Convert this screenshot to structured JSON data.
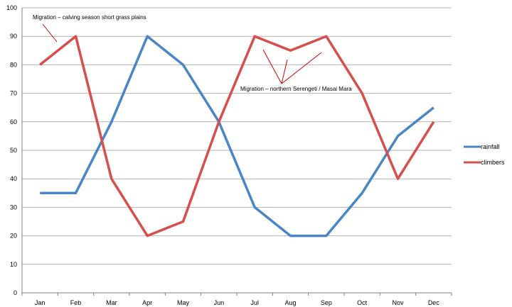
{
  "chart_data": {
    "type": "line",
    "categories": [
      "Jan",
      "Feb",
      "Mar",
      "Apr",
      "May",
      "Jun",
      "Jul",
      "Aug",
      "Sep",
      "Oct",
      "Nov",
      "Dec"
    ],
    "series": [
      {
        "name": "rainfall",
        "color": "#4a86c5",
        "values": [
          35,
          35,
          60,
          90,
          80,
          60,
          30,
          20,
          20,
          35,
          55,
          65
        ]
      },
      {
        "name": "climbers",
        "color": "#d64f4c",
        "values": [
          80,
          90,
          40,
          20,
          25,
          60,
          90,
          85,
          90,
          70,
          40,
          60
        ]
      }
    ],
    "ylim": [
      0,
      100
    ],
    "yticks": [
      "0",
      "10",
      "20",
      "30",
      "40",
      "50",
      "60",
      "70",
      "80",
      "90",
      "100"
    ],
    "grid": true,
    "legend": "right",
    "annotations": [
      {
        "text": "Migration – calving season short grass plains",
        "color": "#cc0000"
      },
      {
        "text": "Migration – northern Serengeti / Masai Mara",
        "color": "#cc0000"
      }
    ]
  }
}
